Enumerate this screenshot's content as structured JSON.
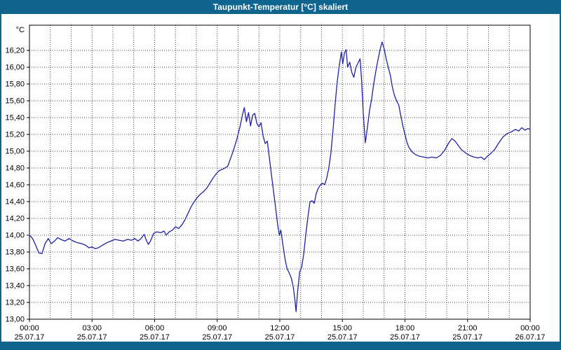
{
  "window": {
    "title": "Taupunkt-Temperatur [°C] skaliert"
  },
  "colors": {
    "frame": "#10658e",
    "title_text": "#ffffff",
    "background": "#ffffff",
    "grid": "#444444",
    "plot_border": "#000000",
    "axis_text": "#000000",
    "line": "#2121a8"
  },
  "chart_data": {
    "type": "line",
    "title": "Taupunkt-Temperatur [°C] skaliert",
    "unit_label": "°C",
    "ylim": [
      13.0,
      16.5
    ],
    "xlim_hours": [
      0,
      24
    ],
    "grid": {
      "style": "dotted",
      "x_minor_every_hours": 1,
      "y_step": 0.2
    },
    "legend": "none",
    "y_ticks": [
      {
        "value": 16.2,
        "label": "16,20"
      },
      {
        "value": 16.0,
        "label": "16,00"
      },
      {
        "value": 15.8,
        "label": "15,80"
      },
      {
        "value": 15.6,
        "label": "15,60"
      },
      {
        "value": 15.4,
        "label": "15,40"
      },
      {
        "value": 15.2,
        "label": "15,20"
      },
      {
        "value": 15.0,
        "label": "15,00"
      },
      {
        "value": 14.8,
        "label": "14,80"
      },
      {
        "value": 14.6,
        "label": "14,60"
      },
      {
        "value": 14.4,
        "label": "14,40"
      },
      {
        "value": 14.2,
        "label": "14,20"
      },
      {
        "value": 14.0,
        "label": "14,00"
      },
      {
        "value": 13.8,
        "label": "13,80"
      },
      {
        "value": 13.6,
        "label": "13,60"
      },
      {
        "value": 13.4,
        "label": "13,40"
      },
      {
        "value": 13.2,
        "label": "13,20"
      },
      {
        "value": 13.0,
        "label": "13,00"
      }
    ],
    "x_ticks": [
      {
        "hour": 0,
        "time": "00:00",
        "date": "25.07.17"
      },
      {
        "hour": 3,
        "time": "03:00",
        "date": "25.07.17"
      },
      {
        "hour": 6,
        "time": "06:00",
        "date": "25.07.17"
      },
      {
        "hour": 9,
        "time": "09:00",
        "date": "25.07.17"
      },
      {
        "hour": 12,
        "time": "12:00",
        "date": "25.07.17"
      },
      {
        "hour": 15,
        "time": "15:00",
        "date": "25.07.17"
      },
      {
        "hour": 18,
        "time": "18:00",
        "date": "25.07.17"
      },
      {
        "hour": 21,
        "time": "21:00",
        "date": "25.07.17"
      },
      {
        "hour": 24,
        "time": "00:00",
        "date": "26.07.17"
      }
    ],
    "series": [
      {
        "name": "Taupunkt-Temperatur",
        "color": "#2121a8",
        "points": [
          [
            0.0,
            14.0
          ],
          [
            0.15,
            13.96
          ],
          [
            0.3,
            13.88
          ],
          [
            0.45,
            13.79
          ],
          [
            0.6,
            13.78
          ],
          [
            0.75,
            13.9
          ],
          [
            0.9,
            13.96
          ],
          [
            1.05,
            13.9
          ],
          [
            1.2,
            13.93
          ],
          [
            1.35,
            13.97
          ],
          [
            1.5,
            13.95
          ],
          [
            1.7,
            13.93
          ],
          [
            1.9,
            13.96
          ],
          [
            2.1,
            13.93
          ],
          [
            2.3,
            13.91
          ],
          [
            2.5,
            13.9
          ],
          [
            2.7,
            13.88
          ],
          [
            2.85,
            13.85
          ],
          [
            3.0,
            13.86
          ],
          [
            3.15,
            13.84
          ],
          [
            3.3,
            13.85
          ],
          [
            3.5,
            13.88
          ],
          [
            3.7,
            13.91
          ],
          [
            3.9,
            13.93
          ],
          [
            4.1,
            13.95
          ],
          [
            4.3,
            13.94
          ],
          [
            4.5,
            13.93
          ],
          [
            4.7,
            13.95
          ],
          [
            4.9,
            13.94
          ],
          [
            5.05,
            13.96
          ],
          [
            5.2,
            13.93
          ],
          [
            5.35,
            13.96
          ],
          [
            5.5,
            14.01
          ],
          [
            5.6,
            13.94
          ],
          [
            5.7,
            13.89
          ],
          [
            5.8,
            13.93
          ],
          [
            5.95,
            14.02
          ],
          [
            6.1,
            14.04
          ],
          [
            6.3,
            14.03
          ],
          [
            6.45,
            14.05
          ],
          [
            6.55,
            14.0
          ],
          [
            6.7,
            14.04
          ],
          [
            6.85,
            14.06
          ],
          [
            7.0,
            14.1
          ],
          [
            7.15,
            14.08
          ],
          [
            7.3,
            14.12
          ],
          [
            7.45,
            14.18
          ],
          [
            7.6,
            14.26
          ],
          [
            7.75,
            14.34
          ],
          [
            7.9,
            14.4
          ],
          [
            8.05,
            14.45
          ],
          [
            8.2,
            14.49
          ],
          [
            8.35,
            14.52
          ],
          [
            8.5,
            14.56
          ],
          [
            8.65,
            14.62
          ],
          [
            8.8,
            14.68
          ],
          [
            8.95,
            14.73
          ],
          [
            9.1,
            14.77
          ],
          [
            9.3,
            14.79
          ],
          [
            9.5,
            14.82
          ],
          [
            9.65,
            14.92
          ],
          [
            9.8,
            15.03
          ],
          [
            9.95,
            15.15
          ],
          [
            10.1,
            15.3
          ],
          [
            10.2,
            15.42
          ],
          [
            10.3,
            15.52
          ],
          [
            10.4,
            15.35
          ],
          [
            10.5,
            15.46
          ],
          [
            10.6,
            15.3
          ],
          [
            10.7,
            15.43
          ],
          [
            10.8,
            15.45
          ],
          [
            10.9,
            15.33
          ],
          [
            11.0,
            15.29
          ],
          [
            11.1,
            15.34
          ],
          [
            11.2,
            15.18
          ],
          [
            11.3,
            15.09
          ],
          [
            11.4,
            15.12
          ],
          [
            11.5,
            14.92
          ],
          [
            11.6,
            14.72
          ],
          [
            11.7,
            14.52
          ],
          [
            11.8,
            14.32
          ],
          [
            11.9,
            14.12
          ],
          [
            11.98,
            14.0
          ],
          [
            12.05,
            14.06
          ],
          [
            12.15,
            13.88
          ],
          [
            12.25,
            13.72
          ],
          [
            12.35,
            13.6
          ],
          [
            12.45,
            13.55
          ],
          [
            12.55,
            13.49
          ],
          [
            12.65,
            13.38
          ],
          [
            12.72,
            13.24
          ],
          [
            12.78,
            13.09
          ],
          [
            12.85,
            13.32
          ],
          [
            12.95,
            13.56
          ],
          [
            13.05,
            13.62
          ],
          [
            13.15,
            13.78
          ],
          [
            13.25,
            14.02
          ],
          [
            13.35,
            14.22
          ],
          [
            13.45,
            14.4
          ],
          [
            13.55,
            14.41
          ],
          [
            13.65,
            14.38
          ],
          [
            13.75,
            14.5
          ],
          [
            13.85,
            14.56
          ],
          [
            13.95,
            14.6
          ],
          [
            14.05,
            14.62
          ],
          [
            14.15,
            14.6
          ],
          [
            14.25,
            14.68
          ],
          [
            14.35,
            14.8
          ],
          [
            14.45,
            14.98
          ],
          [
            14.55,
            15.25
          ],
          [
            14.65,
            15.55
          ],
          [
            14.75,
            15.82
          ],
          [
            14.85,
            16.02
          ],
          [
            14.95,
            16.18
          ],
          [
            15.02,
            16.04
          ],
          [
            15.1,
            16.17
          ],
          [
            15.18,
            16.21
          ],
          [
            15.25,
            16.0
          ],
          [
            15.35,
            16.06
          ],
          [
            15.45,
            15.94
          ],
          [
            15.55,
            15.88
          ],
          [
            15.65,
            16.0
          ],
          [
            15.75,
            16.05
          ],
          [
            15.85,
            16.1
          ],
          [
            15.92,
            15.85
          ],
          [
            16.0,
            15.45
          ],
          [
            16.1,
            15.1
          ],
          [
            16.2,
            15.28
          ],
          [
            16.3,
            15.48
          ],
          [
            16.4,
            15.62
          ],
          [
            16.5,
            15.8
          ],
          [
            16.6,
            15.95
          ],
          [
            16.7,
            16.08
          ],
          [
            16.8,
            16.2
          ],
          [
            16.9,
            16.3
          ],
          [
            17.0,
            16.22
          ],
          [
            17.1,
            16.1
          ],
          [
            17.2,
            16.0
          ],
          [
            17.3,
            15.9
          ],
          [
            17.4,
            15.76
          ],
          [
            17.5,
            15.66
          ],
          [
            17.6,
            15.6
          ],
          [
            17.7,
            15.55
          ],
          [
            17.8,
            15.42
          ],
          [
            17.9,
            15.3
          ],
          [
            18.0,
            15.2
          ],
          [
            18.1,
            15.1
          ],
          [
            18.2,
            15.04
          ],
          [
            18.35,
            14.99
          ],
          [
            18.5,
            14.96
          ],
          [
            18.7,
            14.94
          ],
          [
            18.9,
            14.93
          ],
          [
            19.1,
            14.92
          ],
          [
            19.3,
            14.93
          ],
          [
            19.5,
            14.92
          ],
          [
            19.7,
            14.95
          ],
          [
            19.9,
            15.01
          ],
          [
            20.1,
            15.1
          ],
          [
            20.25,
            15.15
          ],
          [
            20.4,
            15.12
          ],
          [
            20.55,
            15.07
          ],
          [
            20.7,
            15.02
          ],
          [
            20.9,
            14.98
          ],
          [
            21.1,
            14.95
          ],
          [
            21.3,
            14.93
          ],
          [
            21.5,
            14.92
          ],
          [
            21.65,
            14.93
          ],
          [
            21.8,
            14.9
          ],
          [
            21.95,
            14.94
          ],
          [
            22.1,
            14.97
          ],
          [
            22.3,
            15.02
          ],
          [
            22.5,
            15.1
          ],
          [
            22.7,
            15.17
          ],
          [
            22.9,
            15.21
          ],
          [
            23.1,
            15.23
          ],
          [
            23.3,
            15.26
          ],
          [
            23.45,
            15.24
          ],
          [
            23.6,
            15.28
          ],
          [
            23.75,
            15.25
          ],
          [
            23.9,
            15.27
          ],
          [
            24.0,
            15.26
          ]
        ]
      }
    ]
  }
}
